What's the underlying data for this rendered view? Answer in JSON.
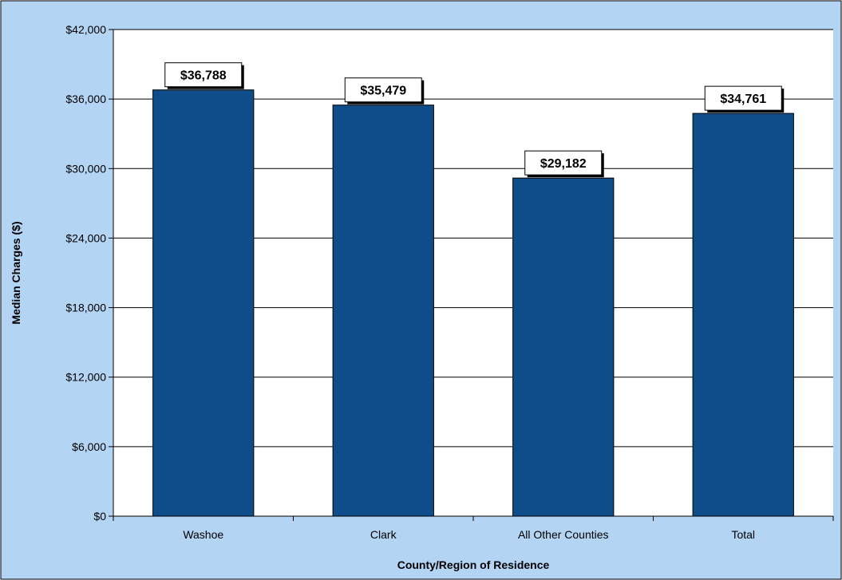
{
  "chart_data": {
    "type": "bar",
    "categories": [
      "Washoe",
      "Clark",
      "All Other Counties",
      "Total"
    ],
    "values": [
      36788,
      35479,
      29182,
      34761
    ],
    "data_labels": [
      "$36,788",
      "$35,479",
      "$29,182",
      "$34,761"
    ],
    "xlabel": "County/Region of Residence",
    "ylabel": "Median Charges ($)",
    "ylim": [
      0,
      42000
    ],
    "yticks": [
      0,
      6000,
      12000,
      18000,
      24000,
      30000,
      36000,
      42000
    ],
    "ytick_labels": [
      "$0",
      "$6,000",
      "$12,000",
      "$18,000",
      "$24,000",
      "$30,000",
      "$36,000",
      "$42,000"
    ],
    "grid": true,
    "colors": {
      "bar": "#0F4D8A",
      "background": "#B4D4F4",
      "plot_area": "#FFFFFF",
      "gridline": "#000000"
    }
  }
}
